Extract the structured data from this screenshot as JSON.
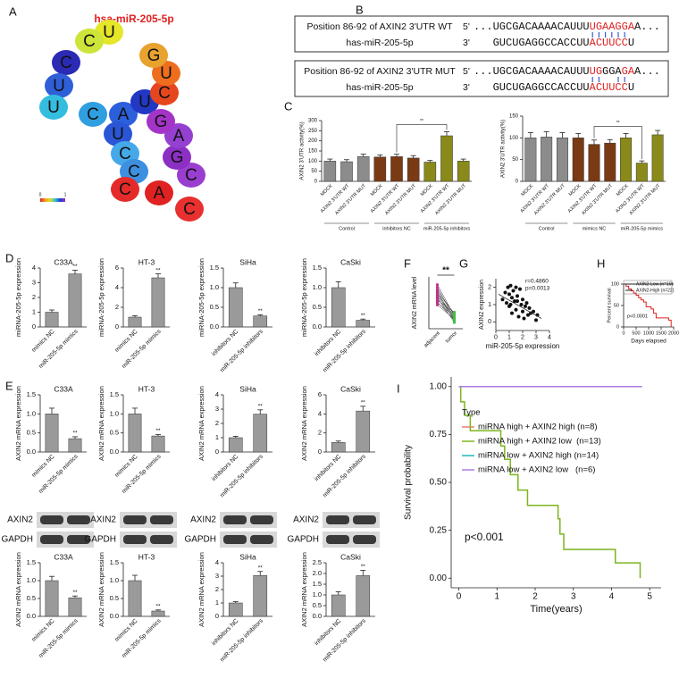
{
  "panel_labels": [
    "A",
    "B",
    "C",
    "D",
    "E",
    "F",
    "G",
    "H",
    "I"
  ],
  "rna": {
    "title": "hsa-miR-205-5p",
    "nodes": [
      {
        "label": "U",
        "color": "#e6e62a"
      },
      {
        "label": "C",
        "color": "#cde43a"
      },
      {
        "label": "C",
        "color": "#2a2ab5"
      },
      {
        "label": "U",
        "color": "#2f5fd8"
      },
      {
        "label": "U",
        "color": "#35bde0"
      },
      {
        "label": "C",
        "color": "#2f9fe0"
      },
      {
        "label": "A",
        "color": "#2c5fdc"
      },
      {
        "label": "U",
        "color": "#2238c4"
      },
      {
        "label": "U",
        "color": "#2a56d6"
      },
      {
        "label": "C",
        "color": "#45a8e8"
      },
      {
        "label": "C",
        "color": "#3d90e0"
      },
      {
        "label": "C",
        "color": "#e52a2a"
      },
      {
        "label": "A",
        "color": "#e02222"
      },
      {
        "label": "C",
        "color": "#e83030"
      },
      {
        "label": "C",
        "color": "#9a3ed0"
      },
      {
        "label": "G",
        "color": "#8c30c4"
      },
      {
        "label": "A",
        "color": "#9440d0"
      },
      {
        "label": "G",
        "color": "#a434c8"
      },
      {
        "label": "C",
        "color": "#e6461e"
      },
      {
        "label": "U",
        "color": "#ef6e1e"
      },
      {
        "label": "G",
        "color": "#e8a22e"
      }
    ],
    "colorbar": {
      "min": 0,
      "max": 1
    }
  },
  "binding": [
    {
      "rows": [
        {
          "label": "Position 86-92 of AXIN2 3'UTR WT",
          "prime": "5'",
          "segments": [
            {
              "text": "...UGCGACAAAACAUUU",
              "highlight": false
            },
            {
              "text": "UGAAGGA",
              "highlight": true
            },
            {
              "text": "A...",
              "highlight": false
            }
          ]
        },
        {
          "label": "has-miR-205-5p",
          "prime": "3'",
          "segments": [
            {
              "text": "GUCUGAGGCCACCUU",
              "highlight": false
            },
            {
              "text": "ACUUCC",
              "highlight": true
            },
            {
              "text": "U",
              "highlight": false
            }
          ]
        }
      ]
    },
    {
      "rows": [
        {
          "label": "Position 86-92 of AXIN2 3'UTR MUT",
          "prime": "5'",
          "segments": [
            {
              "text": "...UGCGACAAAACAUUU",
              "highlight": false
            },
            {
              "text": "UG",
              "highlight": true
            },
            {
              "text": "GGA",
              "highlight": false
            },
            {
              "text": "GA",
              "highlight": true
            },
            {
              "text": "A...",
              "highlight": false
            }
          ]
        },
        {
          "label": "has-miR-205-5p",
          "prime": "3'",
          "segments": [
            {
              "text": "GUCUGAGGCCACCUU",
              "highlight": false
            },
            {
              "text": "ACUUCC",
              "highlight": true
            },
            {
              "text": "U",
              "highlight": false
            }
          ]
        }
      ]
    }
  ],
  "blots": [
    {
      "bands": [
        "AXIN2",
        "GAPDH"
      ]
    },
    {
      "bands": [
        "AXIN2",
        "GAPDH"
      ]
    },
    {
      "bands": [
        "AXIN2",
        "GAPDH"
      ]
    },
    {
      "bands": [
        "AXIN2",
        "GAPDH"
      ]
    }
  ],
  "chart_data": [
    {
      "type": "bar",
      "ylabel": "AXIN2 3'UTR activity(%)",
      "categories": [
        "MOCK",
        "AXIN2 3'UTR WT",
        "AXIN2 3'UTR MUT",
        "MOCK",
        "AXIN2 3'UTR WT",
        "AXIN2 3'UTR MUT",
        "MOCK",
        "AXIN2 3'UTR WT",
        "AXIN2 3'UTR MUT"
      ],
      "values": [
        100,
        97,
        122,
        120,
        122,
        115,
        95,
        225,
        100
      ],
      "errors": [
        10,
        10,
        12,
        10,
        12,
        12,
        8,
        20,
        10
      ],
      "groups": [
        {
          "name": "Control",
          "color": "#8c8c8c"
        },
        {
          "name": "inhibitors NC",
          "color": "#7a3a14"
        },
        {
          "name": "miR-205-5p inhibitors",
          "color": "#8a8a1a"
        }
      ],
      "annotation": "**",
      "ylim": [
        0,
        300
      ],
      "yticks": [
        0,
        50,
        100,
        150,
        200,
        250,
        300
      ]
    },
    {
      "type": "bar",
      "ylabel": "AXIN2 3'UTR activity(%)",
      "categories": [
        "MOCK",
        "AXIN2 3'UTR WT",
        "AXIN2 3'UTR MUT",
        "MOCK",
        "AXIN2 3'UTR WT",
        "AXIN2 3'UTR MUT",
        "MOCK",
        "AXIN2 3'UTR WT",
        "AXIN2 3'UTR MUT"
      ],
      "values": [
        100,
        102,
        100,
        100,
        85,
        88,
        100,
        42,
        107
      ],
      "errors": [
        12,
        12,
        12,
        10,
        10,
        8,
        10,
        5,
        10
      ],
      "groups": [
        {
          "name": "Control",
          "color": "#8c8c8c"
        },
        {
          "name": "mimics NC",
          "color": "#7a3a14"
        },
        {
          "name": "miR-205-5p mimics",
          "color": "#8a8a1a"
        }
      ],
      "annotation": "**",
      "ylim": [
        0,
        150
      ],
      "yticks": [
        0,
        50,
        100,
        150
      ]
    },
    {
      "type": "bar",
      "title": "C33A",
      "ylabel": "miRNA-205-5p expression",
      "categories": [
        "mimics NC",
        "miR-205-5p mimics"
      ],
      "values": [
        1.0,
        3.6
      ],
      "errors": [
        0.15,
        0.25
      ],
      "significance": [
        null,
        "**"
      ],
      "color": "#9a9a9a",
      "ylim": [
        0,
        4
      ],
      "yticks": [
        0,
        1,
        2,
        3,
        4
      ]
    },
    {
      "type": "bar",
      "title": "HT-3",
      "ylabel": "miRNA-205-5p expression",
      "categories": [
        "mimics NC",
        "miR-205-5p mimics"
      ],
      "values": [
        1.0,
        5.0
      ],
      "errors": [
        0.15,
        0.4
      ],
      "significance": [
        null,
        "**"
      ],
      "color": "#9a9a9a",
      "ylim": [
        0,
        6
      ],
      "yticks": [
        0,
        2,
        4,
        6
      ]
    },
    {
      "type": "bar",
      "title": "SiHa",
      "ylabel": "miRNA-205-5p expression",
      "categories": [
        "inhibitors NC",
        "miR-205-5p inhibitors"
      ],
      "values": [
        1.0,
        0.28
      ],
      "errors": [
        0.12,
        0.03
      ],
      "significance": [
        null,
        "**"
      ],
      "color": "#9a9a9a",
      "ylim": [
        0,
        1.5
      ],
      "yticks": [
        {
          "value": 0,
          "label": "0.0"
        },
        0.5,
        {
          "value": 1,
          "label": "1.0"
        },
        1.5
      ]
    },
    {
      "type": "bar",
      "title": "CaSki",
      "ylabel": "miRNA-205-5p expression",
      "categories": [
        "inhibitors NC",
        "miR-205-5p inhibitors"
      ],
      "values": [
        1.0,
        0.17
      ],
      "errors": [
        0.15,
        0.03
      ],
      "significance": [
        null,
        "**"
      ],
      "color": "#9a9a9a",
      "ylim": [
        0,
        1.5
      ],
      "yticks": [
        {
          "value": 0,
          "label": "0.0"
        },
        0.5,
        {
          "value": 1,
          "label": "1.0"
        },
        1.5
      ]
    },
    {
      "type": "paired",
      "ylabel": "AXIN2 mRNA level",
      "categories": [
        "adjacent",
        "tumor"
      ],
      "pairs": [
        [
          8.5,
          2.5
        ],
        [
          8.0,
          2.0
        ],
        [
          7.5,
          2.8
        ],
        [
          7.2,
          1.5
        ],
        [
          7.0,
          3.0
        ],
        [
          6.8,
          2.2
        ],
        [
          6.5,
          1.8
        ],
        [
          6.2,
          2.6
        ],
        [
          6.0,
          1.2
        ],
        [
          5.8,
          2.0
        ],
        [
          5.5,
          3.2
        ],
        [
          5.2,
          1.6
        ],
        [
          5.0,
          2.4
        ],
        [
          4.6,
          1.9
        ]
      ],
      "colors": [
        "#c0308a",
        "#40c040"
      ],
      "annotation": "**",
      "ylim": [
        0,
        10
      ]
    },
    {
      "type": "scatter",
      "xlabel": "miR-205-5p expression",
      "ylabel": "AXIN2 expression",
      "annotations": [
        "r=0.4860",
        "p=0.0013"
      ],
      "x": [
        0.5,
        0.7,
        0.8,
        0.9,
        1.0,
        1.0,
        1.1,
        1.2,
        1.2,
        1.3,
        1.4,
        1.5,
        1.5,
        1.6,
        1.7,
        1.8,
        1.9,
        2.0,
        2.0,
        2.1,
        2.2,
        2.3,
        2.4,
        2.5,
        2.6,
        2.8,
        3.0,
        3.1,
        1.1,
        1.6
      ],
      "y": [
        1.3,
        1.7,
        1.1,
        2.0,
        1.6,
        0.9,
        2.1,
        1.4,
        0.5,
        1.8,
        1.2,
        2.0,
        0.7,
        1.5,
        0.3,
        1.9,
        1.0,
        0.6,
        1.3,
        0.2,
        0.9,
        1.1,
        0.4,
        0.8,
        0.5,
        0.6,
        0.1,
        0.4,
        1.0,
        1.2
      ],
      "fit": {
        "x": [
          0.2,
          3.4
        ],
        "y": [
          1.6,
          0.2
        ]
      },
      "color": "#111111",
      "xlim": [
        0,
        4
      ],
      "xticks": [
        0,
        1,
        2,
        3,
        4
      ],
      "ylim": [
        -0.5,
        2.5
      ],
      "yticks": [
        0,
        1,
        2
      ]
    },
    {
      "type": "survival",
      "xlabel": "Days elapsed",
      "ylabel": "Percent survival",
      "annotation": "p<0.0001",
      "series": [
        {
          "name": "AXIN2-Low (n=19)",
          "color": "#e02020",
          "x": [
            0,
            100,
            200,
            300,
            400,
            500,
            600,
            700,
            800,
            900,
            1100,
            1200,
            1300,
            1800,
            1900
          ],
          "y": [
            100,
            95,
            89,
            84,
            79,
            74,
            68,
            63,
            58,
            47,
            42,
            32,
            21,
            16,
            0
          ]
        },
        {
          "name": "AXIN2-High (n=22)",
          "color": "#222222",
          "x": [
            0,
            2000
          ],
          "y": [
            100,
            100
          ]
        }
      ],
      "xlim": [
        0,
        2000
      ],
      "xticks": [
        0,
        500,
        1000,
        1500,
        2000
      ],
      "ylim": [
        0,
        100
      ],
      "yticks": [
        0,
        50,
        100
      ]
    },
    {
      "type": "bar",
      "title": "C33A",
      "ylabel": "AXIN2 mRNA expression",
      "categories": [
        "mimics NC",
        "miR-205-5p mimics"
      ],
      "values": [
        1.0,
        0.35
      ],
      "errors": [
        0.15,
        0.05
      ],
      "significance": [
        null,
        "**"
      ],
      "color": "#9a9a9a",
      "ylim": [
        0,
        1.5
      ],
      "yticks": [
        {
          "value": 0,
          "label": "0.0"
        },
        0.5,
        {
          "value": 1,
          "label": "1.0"
        },
        1.5
      ]
    },
    {
      "type": "bar",
      "title": "HT-3",
      "ylabel": "AXIN2 mRNA expression",
      "categories": [
        "mimics NC",
        "miR-205-5p mimics"
      ],
      "values": [
        1.0,
        0.42
      ],
      "errors": [
        0.15,
        0.04
      ],
      "significance": [
        null,
        "**"
      ],
      "color": "#9a9a9a",
      "ylim": [
        0,
        1.5
      ],
      "yticks": [
        {
          "value": 0,
          "label": "0.0"
        },
        0.5,
        {
          "value": 1,
          "label": "1.0"
        },
        1.5
      ]
    },
    {
      "type": "bar",
      "title": "SiHa",
      "ylabel": "AXIN2 mRNA expression",
      "categories": [
        "inhibitors NC",
        "miR-205-5p inhibitors"
      ],
      "values": [
        1.0,
        2.65
      ],
      "errors": [
        0.1,
        0.3
      ],
      "significance": [
        null,
        "**"
      ],
      "color": "#9a9a9a",
      "ylim": [
        0,
        4
      ],
      "yticks": [
        0,
        1,
        2,
        3,
        4
      ]
    },
    {
      "type": "bar",
      "title": "CaSki",
      "ylabel": "AXIN2 mRNA expression",
      "categories": [
        "inhibitors NC",
        "miR-205-5p inhibitors"
      ],
      "values": [
        1.0,
        4.3
      ],
      "errors": [
        0.15,
        0.5
      ],
      "significance": [
        null,
        "**"
      ],
      "color": "#9a9a9a",
      "ylim": [
        0,
        6
      ],
      "yticks": [
        0,
        2,
        4,
        6
      ]
    },
    {
      "type": "bar",
      "title": "C33A",
      "ylabel": "AXIN2 mRNA expression",
      "categories": [
        "mimics NC",
        "miR-205-5p mimics"
      ],
      "values": [
        1.0,
        0.52
      ],
      "errors": [
        0.12,
        0.05
      ],
      "significance": [
        null,
        "**"
      ],
      "color": "#9a9a9a",
      "ylim": [
        0,
        1.5
      ],
      "yticks": [
        {
          "value": 0,
          "label": "0.0"
        },
        0.5,
        {
          "value": 1,
          "label": "1.0"
        },
        1.5
      ]
    },
    {
      "type": "bar",
      "title": "HT-3",
      "ylabel": "AXIN2 mRNA expression",
      "categories": [
        "mimics NC",
        "miR-205-5p mimics"
      ],
      "values": [
        1.0,
        0.15
      ],
      "errors": [
        0.15,
        0.03
      ],
      "significance": [
        null,
        "**"
      ],
      "color": "#9a9a9a",
      "ylim": [
        0,
        1.5
      ],
      "yticks": [
        {
          "value": 0,
          "label": "0.0"
        },
        0.5,
        {
          "value": 1,
          "label": "1.0"
        },
        1.5
      ]
    },
    {
      "type": "bar",
      "title": "SiHa",
      "ylabel": "AXIN2 mRNA expression",
      "categories": [
        "inhibitors NC",
        "miR-205-5p inhibitors"
      ],
      "values": [
        1.0,
        3.05
      ],
      "errors": [
        0.1,
        0.3
      ],
      "significance": [
        null,
        "**"
      ],
      "color": "#9a9a9a",
      "ylim": [
        0,
        4
      ],
      "yticks": [
        0,
        1,
        2,
        3,
        4
      ]
    },
    {
      "type": "bar",
      "title": "CaSki",
      "ylabel": "AXIN2 mRNA expression",
      "categories": [
        "inhibitors NC",
        "miR-205-5p inhibitors"
      ],
      "values": [
        1.0,
        1.9
      ],
      "errors": [
        0.15,
        0.25
      ],
      "significance": [
        null,
        "**"
      ],
      "color": "#9a9a9a",
      "ylim": [
        0,
        2.5
      ],
      "yticks": [
        {
          "value": 0,
          "label": "0.0"
        },
        0.5,
        {
          "value": 1,
          "label": "1.0"
        },
        1.5,
        {
          "value": 2,
          "label": "2.0"
        },
        2.5
      ]
    },
    {
      "type": "survival",
      "xlabel": "Time(years)",
      "ylabel": "Survival probability",
      "annotation": "p<0.001",
      "legend_title": "Type",
      "series": [
        {
          "name": "miRNA high + AXIN2 high (n=8)",
          "color": "#f07878",
          "x": [
            0,
            4.8
          ],
          "y": [
            1,
            1
          ]
        },
        {
          "name": "miRNA high + AXIN2 low  (n=13)",
          "color": "#7cb51c",
          "x": [
            0,
            0.05,
            0.15,
            0.3,
            1.1,
            1.2,
            1.35,
            1.55,
            1.8,
            2.6,
            2.65,
            2.75,
            4.1,
            4.75
          ],
          "y": [
            1,
            0.92,
            0.85,
            0.77,
            0.69,
            0.62,
            0.54,
            0.46,
            0.38,
            0.31,
            0.23,
            0.15,
            0.08,
            0
          ]
        },
        {
          "name": "miRNA low + AXIN2 high (n=14)",
          "color": "#20b8b8",
          "x": [
            0,
            4.8
          ],
          "y": [
            1,
            1
          ]
        },
        {
          "name": "miRNA low + AXIN2 low   (n=6)",
          "color": "#b07ae0",
          "x": [
            0,
            4.8
          ],
          "y": [
            1,
            1
          ]
        }
      ],
      "xlim": [
        -0.2,
        5.3
      ],
      "xticks": [
        0,
        1,
        2,
        3,
        4,
        5
      ],
      "ylim": [
        -0.05,
        1.05
      ],
      "yticks": [
        {
          "value": 0,
          "label": "0.00"
        },
        0.25,
        {
          "value": 0.5,
          "label": "0.50"
        },
        0.75,
        {
          "value": 1,
          "label": "1.00"
        }
      ]
    }
  ]
}
